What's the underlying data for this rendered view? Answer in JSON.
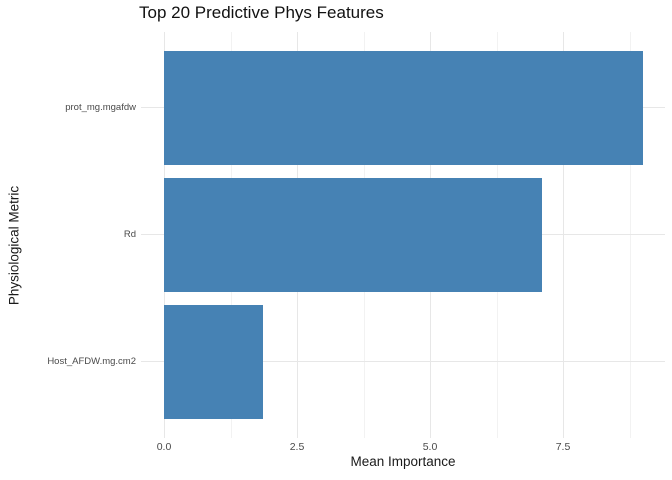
{
  "chart_data": {
    "type": "bar",
    "orientation": "horizontal",
    "title": "Top 20 Predictive Phys Features",
    "xlabel": "Mean Importance",
    "ylabel": "Physiological Metric",
    "categories": [
      "prot_mg.mgafdw",
      "Rd",
      "Host_AFDW.mg.cm2"
    ],
    "values": [
      9.0,
      7.1,
      1.86
    ],
    "xlim": [
      -0.45,
      9.45
    ],
    "x_major_ticks": [
      0,
      2.5,
      5,
      7.5
    ],
    "x_major_tick_labels": [
      "0.0",
      "2.5",
      "5.0",
      "7.5"
    ],
    "x_minor_ticks": [
      1.25,
      3.75,
      6.25,
      8.75
    ],
    "grid": "major-and-minor",
    "legend": false,
    "colors": {
      "bar": "#4682B4",
      "grid_major": "#e7e7e7",
      "grid_minor": "#f2f2f2",
      "tick_label": "#4a4a4a",
      "title": "#111111",
      "axis_title": "#1a1a1a",
      "background": "#ffffff"
    }
  }
}
